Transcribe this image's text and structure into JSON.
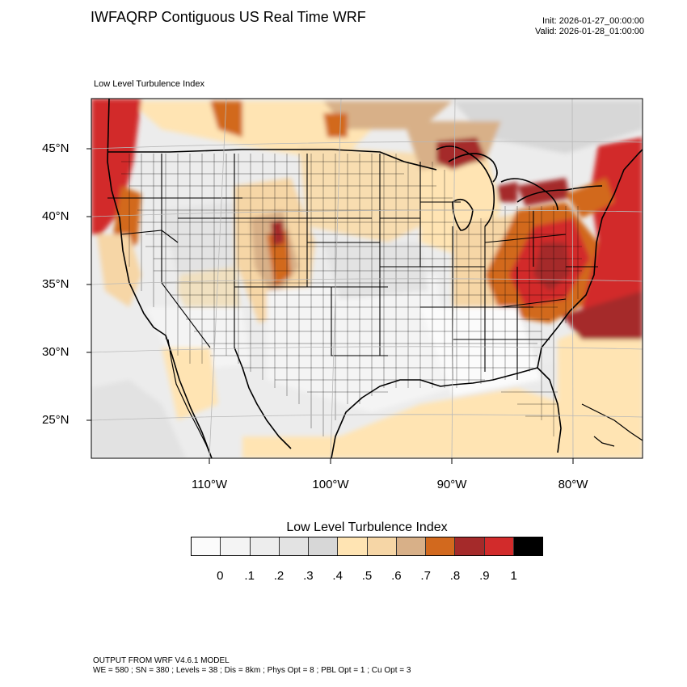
{
  "header": {
    "title": "IWFAQRP Contiguous US Real Time WRF",
    "init": "Init: 2026-01-27_00:00:00",
    "valid": "Valid: 2026-01-28_01:00:00"
  },
  "map": {
    "field_label": "Low Level Turbulence Index",
    "lat_labels": [
      "45°N",
      "40°N",
      "35°N",
      "30°N",
      "25°N"
    ],
    "lon_labels": [
      "110°W",
      "100°W",
      "90°W",
      "80°W"
    ]
  },
  "colorbar": {
    "title": "Low Level Turbulence Index",
    "ticks": [
      "0",
      ".1",
      ".2",
      ".3",
      ".4",
      ".5",
      ".6",
      ".7",
      ".8",
      ".9",
      "1"
    ],
    "colors": [
      "#fbfbfb",
      "#f4f4f4",
      "#ededed",
      "#e3e3e3",
      "#d7d7d7",
      "#ffe4b3",
      "#f6d6a6",
      "#d8b088",
      "#d2691e",
      "#a52a2a",
      "#d22b2b",
      "#000000"
    ]
  },
  "footer": {
    "line1": "OUTPUT FROM WRF V4.6.1 MODEL",
    "line2": "WE = 580 ; SN = 380 ; Levels = 38 ; Dis = 8km ; Phys Opt = 8 ; PBL Opt = 1 ; Cu Opt = 3"
  }
}
